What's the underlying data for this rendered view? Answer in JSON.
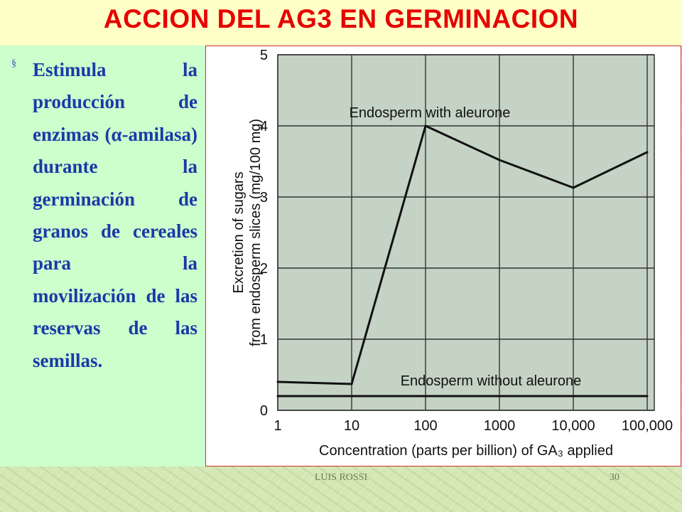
{
  "slide": {
    "title": "ACCION DEL AG3 EN GERMINACION",
    "bullet_symbol": "§",
    "bullet_text": "Estimula la producción de enzimas (α-amilasa) durante la germinación de granos de cereales para la movilización de las reservas de las semillas."
  },
  "footer": {
    "author": "LUIS ROSSI",
    "page_number": "30"
  },
  "colors": {
    "title": "#e60000",
    "bullet_text": "#1a3aa8",
    "plot_background": "#c5d3c5",
    "title_bar": "#ffffc8",
    "text_panel": "#ccffcc"
  },
  "chart_data": {
    "type": "line",
    "x_scale": "log",
    "x": [
      1,
      10,
      100,
      1000,
      10000,
      100000
    ],
    "tick_labels_x": [
      "1",
      "10",
      "100",
      "1000",
      "10,000",
      "100,000"
    ],
    "tick_labels_y": [
      "0",
      "1",
      "2",
      "3",
      "4",
      "5"
    ],
    "ylim": [
      0,
      5
    ],
    "xlabel": "Concentration (parts per billion) of GA₃ applied",
    "ylabel_line1": "Excretion of sugars",
    "ylabel_line2": "from endosperm slices (mg/100 mg)",
    "grid": true,
    "series": [
      {
        "name": "Endosperm with aleurone",
        "values": [
          0.4,
          0.37,
          4.0,
          3.52,
          3.13,
          3.63
        ]
      },
      {
        "name": "Endosperm without aleurone",
        "values": [
          0.2,
          0.2,
          0.2,
          0.2,
          0.2,
          0.2
        ]
      }
    ]
  }
}
